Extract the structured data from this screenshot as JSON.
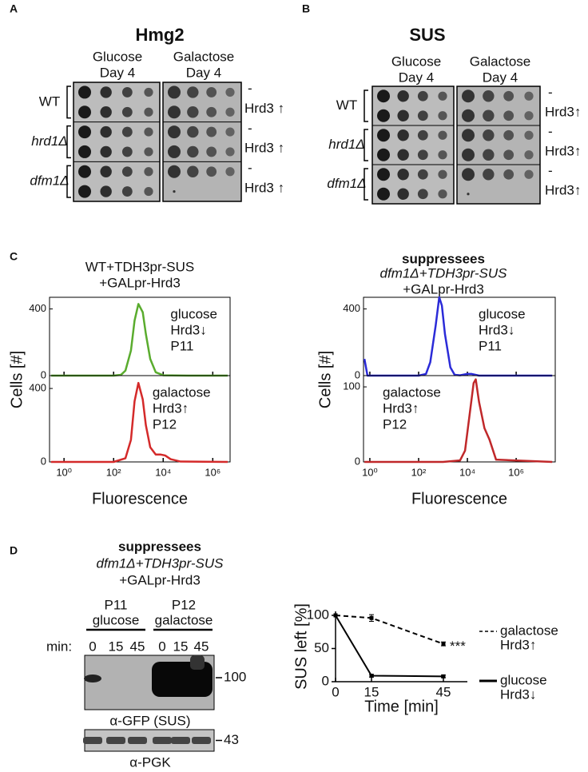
{
  "panel_labels": [
    "A",
    "B",
    "C",
    "D"
  ],
  "spot_assays": [
    {
      "title": "Hmg2",
      "conditions": [
        [
          "Glucose",
          "Day 4"
        ],
        [
          "Galactose",
          "Day 4"
        ]
      ],
      "strains": [
        "WT",
        "hrd1Δ",
        "dfm1Δ"
      ],
      "row_labels": [
        "-",
        "Hrd3 ↑"
      ]
    },
    {
      "title": "SUS",
      "conditions": [
        [
          "Glucose",
          "Day 4"
        ],
        [
          "Galactose",
          "Day 4"
        ]
      ],
      "strains": [
        "WT",
        "hrd1Δ",
        "dfm1Δ"
      ],
      "row_labels": [
        "-",
        "Hrd3↑"
      ]
    }
  ],
  "chart_data": [
    {
      "type": "line",
      "title_lines": [
        "WT+TDH3pr-SUS",
        "+GALpr-Hrd3"
      ],
      "ylabel": "Cells [#]",
      "xlabel": "Fluorescence",
      "xscale": "log",
      "xlim": [
        0.26,
        5000000
      ],
      "xticks": [
        {
          "value": 1,
          "label": "10⁰"
        },
        {
          "value": 100,
          "label": "10²"
        },
        {
          "value": 10000,
          "label": "10⁴"
        },
        {
          "value": 1000000,
          "label": "10⁶"
        }
      ],
      "panels": [
        {
          "annotations": [
            "glucose",
            "Hrd3↓"
          ],
          "ylim": [
            0,
            470
          ],
          "yticks": [
            0,
            400
          ],
          "series": [
            {
              "name": "P11",
              "color": "#5aac2e",
              "x": [
                0.3,
                100,
                200,
                300,
                500,
                700,
                1000,
                1500,
                2000,
                3000,
                5000,
                10000,
                100000,
                4000000
              ],
              "values": [
                0,
                0,
                5,
                30,
                150,
                330,
                430,
                380,
                250,
                100,
                20,
                2,
                0,
                0
              ]
            }
          ]
        },
        {
          "annotations": [
            "galactose",
            "Hrd3↑"
          ],
          "ylim": [
            0,
            470
          ],
          "yticks": [
            0,
            400
          ],
          "series": [
            {
              "name": "P12",
              "color": "#d42a2a",
              "x": [
                0.3,
                100,
                300,
                500,
                700,
                1000,
                1500,
                2000,
                3000,
                5000,
                8000,
                12000,
                20000,
                50000,
                4000000
              ],
              "values": [
                0,
                0,
                20,
                120,
                330,
                430,
                340,
                200,
                80,
                40,
                40,
                35,
                15,
                2,
                0
              ]
            }
          ]
        }
      ]
    },
    {
      "type": "line",
      "heading": "suppressees",
      "title_lines": [
        "dfm1Δ+TDH3pr-SUS",
        "+GALpr-Hrd3"
      ],
      "ylabel": "Cells [#]",
      "xlabel": "Fluorescence",
      "xscale": "log",
      "xlim": [
        0.55,
        40000000
      ],
      "xticks": [
        {
          "value": 1,
          "label": "10⁰"
        },
        {
          "value": 100,
          "label": "10²"
        },
        {
          "value": 10000,
          "label": "10⁴"
        },
        {
          "value": 1000000,
          "label": "10⁶"
        }
      ],
      "panels": [
        {
          "annotations": [
            "glucose",
            "Hrd3↓"
          ],
          "ylim": [
            0,
            470
          ],
          "yticks": [
            0,
            400
          ],
          "series": [
            {
              "name": "P11",
              "color": "#2b2bd8",
              "x": [
                0.6,
                0.8,
                1,
                100,
                200,
                300,
                500,
                700,
                900,
                1200,
                2000,
                3000,
                5000,
                10000,
                15000,
                30000,
                30000000
              ],
              "values": [
                100,
                0,
                0,
                0,
                10,
                80,
                300,
                470,
                420,
                250,
                50,
                5,
                2,
                10,
                10,
                0,
                0
              ]
            }
          ]
        },
        {
          "annotations": [
            "galactose",
            "Hrd3↑"
          ],
          "ylim": [
            0,
            115
          ],
          "yticks": [
            0,
            100
          ],
          "series": [
            {
              "name": "P12",
              "color": "#c0282a",
              "x": [
                0.6,
                1000,
                5000,
                8000,
                12000,
                18000,
                22000,
                30000,
                50000,
                80000,
                150000,
                30000000
              ],
              "values": [
                0,
                0,
                2,
                15,
                60,
                105,
                110,
                80,
                45,
                30,
                3,
                0
              ]
            }
          ]
        }
      ]
    },
    {
      "type": "line",
      "ylabel": "SUS left [%]",
      "xlabel": "Time [min]",
      "x": [
        0,
        15,
        45
      ],
      "xlim": [
        0,
        55
      ],
      "ylim": [
        0,
        106
      ],
      "xticks": [
        0,
        15,
        45
      ],
      "yticks": [
        0,
        50,
        100
      ],
      "series": [
        {
          "name": "galactose",
          "sublabel": "Hrd3↑",
          "dash": true,
          "color": "#000000",
          "values": [
            100,
            96,
            57
          ],
          "errors": [
            0,
            5,
            3
          ],
          "significance": "***"
        },
        {
          "name": "glucose",
          "sublabel": "Hrd3↓",
          "dash": false,
          "color": "#000000",
          "values": [
            100,
            9,
            8
          ],
          "errors": [
            0,
            2,
            2
          ]
        }
      ]
    }
  ],
  "western": {
    "title_lines": [
      "suppressees",
      "dfm1Δ+TDH3pr-SUS",
      "+GALpr-Hrd3"
    ],
    "time_label": "min:",
    "groups": [
      {
        "gate": "P11",
        "color": "#2e2a8c",
        "condition": "glucose",
        "times": [
          0,
          15,
          45
        ]
      },
      {
        "gate": "P12",
        "color": "#c8282a",
        "condition": "galactose",
        "times": [
          0,
          15,
          45
        ]
      }
    ],
    "blots": [
      {
        "antibody": "α-GFP (SUS)",
        "marker": 100
      },
      {
        "antibody": "α-PGK",
        "marker": 43
      }
    ]
  }
}
